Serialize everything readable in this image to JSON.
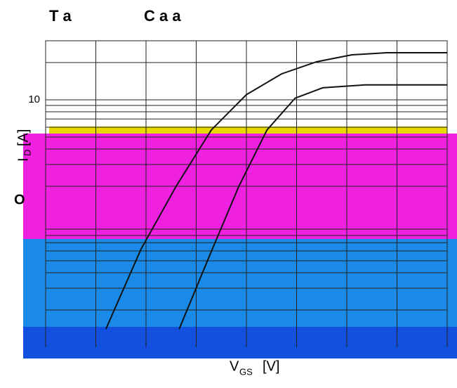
{
  "chart_data": {
    "type": "line",
    "title": [
      "T a",
      "C a a"
    ],
    "annotations": [
      "O"
    ],
    "y_label": {
      "symbol": "I",
      "subscript": "D",
      "unit": "[A]"
    },
    "x_label": {
      "symbol": "V",
      "subscript": "GS",
      "unit": "[V]"
    },
    "log_y": true,
    "grid": true,
    "xlim": [
      0,
      8
    ],
    "xticks": [
      0,
      1,
      2,
      3,
      4,
      5,
      6,
      7,
      8
    ],
    "ylim": [
      0.1,
      30
    ],
    "yticks": [
      10
    ],
    "series": [
      {
        "color": "#111111",
        "x": [
          1.2,
          1.9,
          2.6,
          3.3,
          4.0,
          4.7,
          5.4,
          6.1,
          6.8,
          8
        ],
        "values": [
          0.14,
          0.62,
          2.0,
          5.7,
          11,
          16.2,
          20.3,
          23.1,
          24,
          24
        ]
      },
      {
        "color": "#111111",
        "x": [
          2.66,
          3.29,
          3.85,
          4.41,
          4.97,
          5.52,
          6.36,
          8
        ],
        "values": [
          0.14,
          0.58,
          2.0,
          5.7,
          10.3,
          12.5,
          13.2,
          13.2
        ]
      }
    ]
  }
}
